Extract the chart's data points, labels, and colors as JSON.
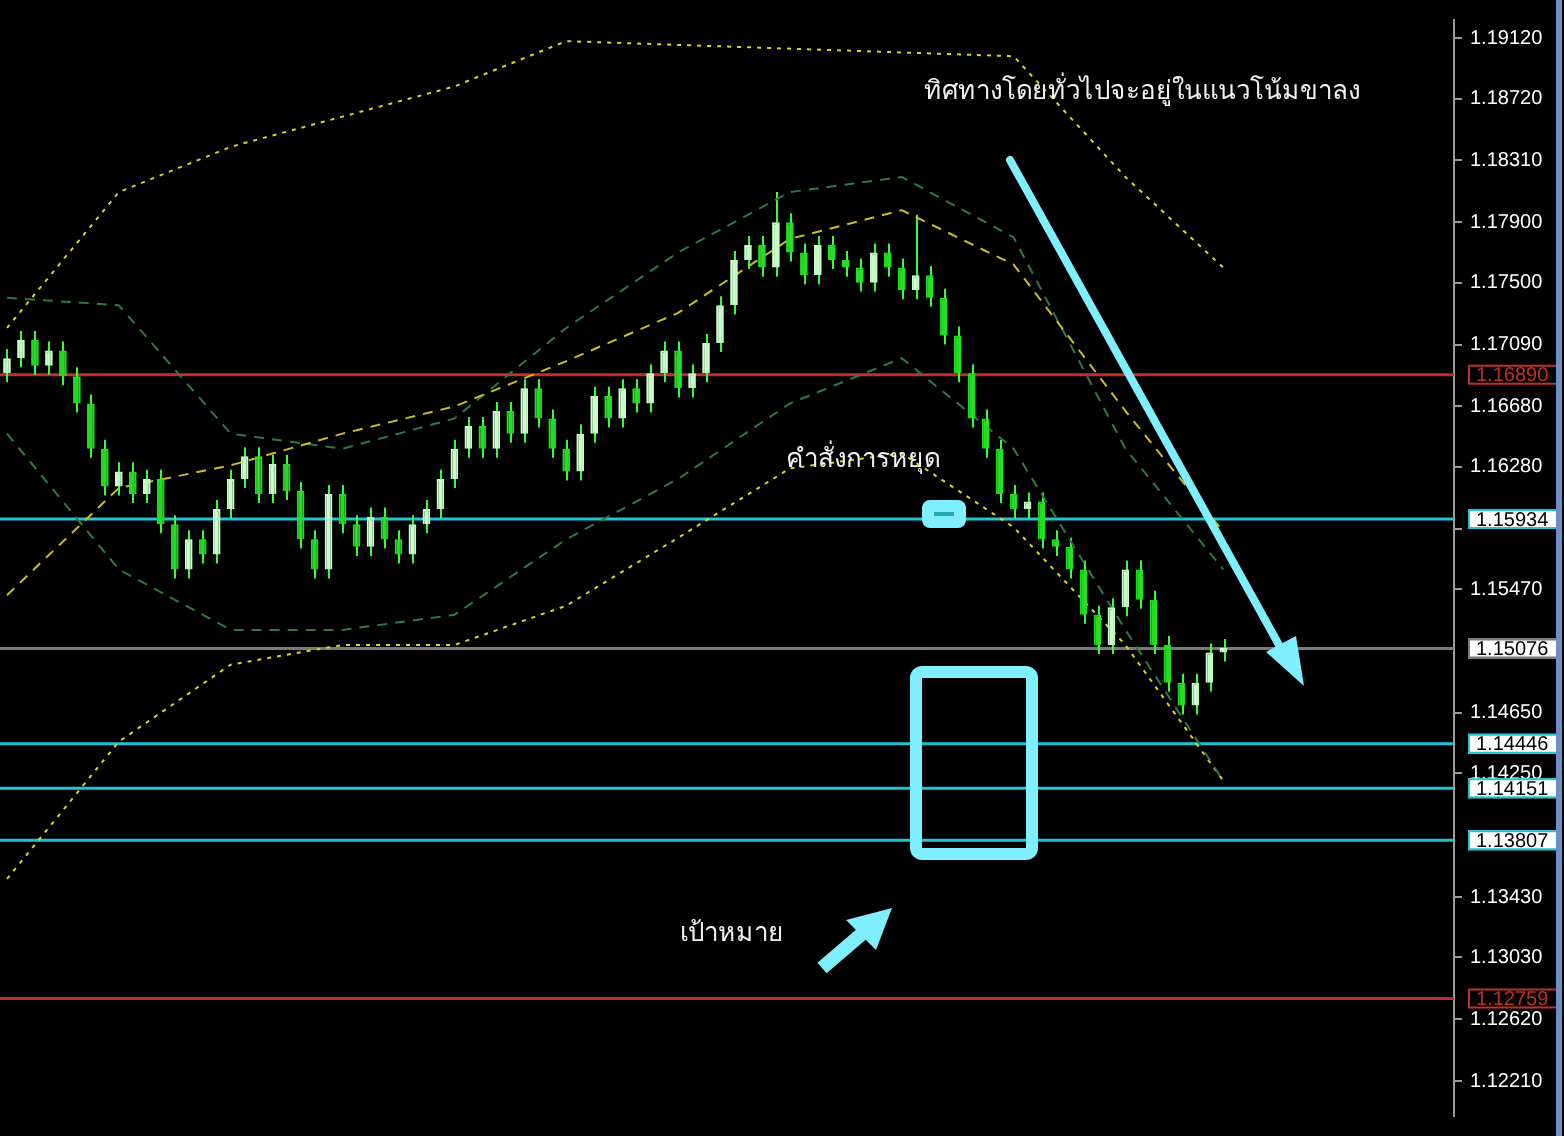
{
  "chart_data": {
    "type": "candlestick",
    "color": "#33ff33",
    "colors": [
      "#c8ffc8",
      "#c8ffc8",
      "#22dd22",
      "#c8ffc8",
      "#22dd22",
      "#22dd22",
      "#22dd22",
      "#22dd22",
      "#c8ffc8",
      "#22dd22",
      "#c8ffc8",
      "#22dd22",
      "#22dd22",
      "#c8ffc8",
      "#22dd22",
      "#c8ffc8",
      "#c8ffc8",
      "#c8ffc8",
      "#22dd22",
      "#c8ffc8",
      "#22dd22",
      "#22dd22",
      "#22dd22",
      "#c8ffc8",
      "#22dd22",
      "#22dd22",
      "#c8ffc8",
      "#22dd22",
      "#22dd22",
      "#c8ffc8",
      "#c8ffc8",
      "#c8ffc8",
      "#c8ffc8",
      "#c8ffc8",
      "#22dd22",
      "#c8ffc8",
      "#22dd22",
      "#c8ffc8",
      "#22dd22",
      "#22dd22",
      "#22dd22",
      "#c8ffc8",
      "#c8ffc8",
      "#22dd22",
      "#c8ffc8",
      "#22dd22",
      "#c8ffc8",
      "#c8ffc8",
      "#22dd22",
      "#c8ffc8",
      "#c8ffc8",
      "#c8ffc8",
      "#c8ffc8",
      "#c8ffc8",
      "#22dd22",
      "#c8ffc8",
      "#22dd22",
      "#22dd22",
      "#c8ffc8",
      "#22dd22",
      "#22dd22",
      "#22dd22",
      "#c8ffc8",
      "#22dd22",
      "#22dd22",
      "#c8ffc8",
      "#22dd22",
      "#22dd22",
      "#22dd22",
      "#22dd22",
      "#22dd22",
      "#22dd22",
      "#22dd22",
      "#c8ffc8",
      "#22dd22",
      "#22dd22",
      "#22dd22",
      "#22dd22",
      "#22dd22",
      "#c8ffc8",
      "#c8ffc8",
      "#22dd22",
      "#22dd22",
      "#22dd22",
      "#22dd22",
      "#c8ffc8",
      "#c8ffc8",
      "#c8ffc8",
      null,
      null,
      null,
      null,
      null,
      null,
      null,
      null,
      null,
      null,
      null,
      null,
      null,
      null,
      null,
      null
    ],
    "annotations": [
      "ทิศทางโดยทั่วไปจะอยู่ในแนวโน้มขาลง",
      "คำสั่งการหยุด",
      "เป้าหมาย"
    ],
    "categories": [
      null,
      null,
      null,
      null,
      null,
      null,
      null,
      null,
      null,
      null,
      null,
      null,
      null,
      null,
      null,
      null,
      null,
      null,
      null,
      null,
      null,
      null,
      null,
      null,
      null,
      null,
      null,
      null,
      null,
      null,
      null,
      null,
      null,
      null,
      null,
      null,
      null,
      null,
      null,
      null,
      null,
      null,
      null,
      null,
      null,
      null,
      null,
      null,
      null,
      null,
      null,
      null,
      null,
      null,
      null,
      null,
      null,
      null,
      null,
      null,
      null,
      null,
      null,
      null,
      null,
      null,
      null,
      null,
      null,
      null,
      null,
      null,
      null,
      null,
      null,
      null,
      null,
      null,
      null,
      null,
      null,
      null,
      null,
      null,
      null,
      null,
      null,
      null,
      null,
      null,
      null,
      null,
      null,
      null,
      null,
      null,
      null,
      null,
      null,
      null,
      null,
      null,
      null,
      null
    ],
    "ohlc": [
      [
        1.169,
        1.1706,
        1.1684,
        1.17
      ],
      [
        1.17,
        1.1718,
        1.1694,
        1.1712
      ],
      [
        1.1712,
        1.1718,
        1.1689,
        1.1695
      ],
      [
        1.1695,
        1.1711,
        1.1689,
        1.1705
      ],
      [
        1.1705,
        1.1711,
        1.1682,
        1.1688
      ],
      [
        1.1688,
        1.1694,
        1.1664,
        1.167
      ],
      [
        1.167,
        1.1676,
        1.1634,
        1.164
      ],
      [
        1.164,
        1.1646,
        1.1609,
        1.1615
      ],
      [
        1.1615,
        1.1631,
        1.1609,
        1.1625
      ],
      [
        1.1625,
        1.1631,
        1.1604,
        1.161
      ],
      [
        1.161,
        1.1626,
        1.1604,
        1.162
      ],
      [
        1.162,
        1.1626,
        1.1584,
        1.159
      ],
      [
        1.159,
        1.1596,
        1.1554,
        1.156
      ],
      [
        1.156,
        1.1586,
        1.1554,
        1.158
      ],
      [
        1.158,
        1.1586,
        1.1564,
        1.157
      ],
      [
        1.157,
        1.1606,
        1.1564,
        1.16
      ],
      [
        1.16,
        1.1626,
        1.1594,
        1.162
      ],
      [
        1.162,
        1.1641,
        1.1614,
        1.1635
      ],
      [
        1.1635,
        1.1641,
        1.1604,
        1.161
      ],
      [
        1.161,
        1.1636,
        1.1604,
        1.163
      ],
      [
        1.163,
        1.1636,
        1.1606,
        1.1612
      ],
      [
        1.1612,
        1.1618,
        1.1574,
        1.158
      ],
      [
        1.158,
        1.1586,
        1.1554,
        1.156
      ],
      [
        1.156,
        1.1616,
        1.1554,
        1.161
      ],
      [
        1.161,
        1.1616,
        1.1584,
        1.159
      ],
      [
        1.159,
        1.1596,
        1.1569,
        1.1575
      ],
      [
        1.1575,
        1.1601,
        1.1569,
        1.1595
      ],
      [
        1.1595,
        1.1601,
        1.1574,
        1.158
      ],
      [
        1.158,
        1.1586,
        1.1564,
        1.157
      ],
      [
        1.157,
        1.1596,
        1.1564,
        1.159
      ],
      [
        1.159,
        1.1606,
        1.1584,
        1.16
      ],
      [
        1.16,
        1.1626,
        1.1594,
        1.162
      ],
      [
        1.162,
        1.1646,
        1.1614,
        1.164
      ],
      [
        1.164,
        1.1661,
        1.1634,
        1.1655
      ],
      [
        1.1655,
        1.1661,
        1.1634,
        1.164
      ],
      [
        1.164,
        1.1671,
        1.1634,
        1.1665
      ],
      [
        1.1665,
        1.1671,
        1.1644,
        1.165
      ],
      [
        1.165,
        1.1686,
        1.1644,
        1.168
      ],
      [
        1.168,
        1.1686,
        1.1654,
        1.166
      ],
      [
        1.166,
        1.1666,
        1.1634,
        1.164
      ],
      [
        1.164,
        1.1646,
        1.1619,
        1.1625
      ],
      [
        1.1625,
        1.1656,
        1.1619,
        1.165
      ],
      [
        1.165,
        1.1681,
        1.1644,
        1.1675
      ],
      [
        1.1675,
        1.1681,
        1.1654,
        1.166
      ],
      [
        1.166,
        1.1686,
        1.1654,
        1.168
      ],
      [
        1.168,
        1.1686,
        1.1664,
        1.167
      ],
      [
        1.167,
        1.1696,
        1.1664,
        1.169
      ],
      [
        1.169,
        1.1711,
        1.1684,
        1.1705
      ],
      [
        1.1705,
        1.1711,
        1.1674,
        1.168
      ],
      [
        1.168,
        1.1696,
        1.1674,
        1.169
      ],
      [
        1.169,
        1.1716,
        1.1684,
        1.171
      ],
      [
        1.171,
        1.1741,
        1.1704,
        1.1735
      ],
      [
        1.1735,
        1.1771,
        1.1729,
        1.1765
      ],
      [
        1.1765,
        1.1781,
        1.1759,
        1.1775
      ],
      [
        1.1775,
        1.1781,
        1.1754,
        1.176
      ],
      [
        1.176,
        1.181,
        1.1754,
        1.179
      ],
      [
        1.179,
        1.1796,
        1.1764,
        1.177
      ],
      [
        1.177,
        1.1776,
        1.1749,
        1.1755
      ],
      [
        1.1755,
        1.1781,
        1.1749,
        1.1775
      ],
      [
        1.1775,
        1.1781,
        1.1759,
        1.1765
      ],
      [
        1.1765,
        1.1771,
        1.1754,
        1.176
      ],
      [
        1.176,
        1.1766,
        1.1744,
        1.175
      ],
      [
        1.175,
        1.1776,
        1.1744,
        1.177
      ],
      [
        1.177,
        1.1776,
        1.1754,
        1.176
      ],
      [
        1.176,
        1.1766,
        1.1739,
        1.1745
      ],
      [
        1.1745,
        1.1795,
        1.1739,
        1.1755
      ],
      [
        1.1755,
        1.1761,
        1.1734,
        1.174
      ],
      [
        1.174,
        1.1746,
        1.1709,
        1.1715
      ],
      [
        1.1715,
        1.1721,
        1.1684,
        1.169
      ],
      [
        1.169,
        1.1696,
        1.1654,
        1.166
      ],
      [
        1.166,
        1.1666,
        1.1634,
        1.164
      ],
      [
        1.164,
        1.1646,
        1.1604,
        1.161
      ],
      [
        1.161,
        1.1616,
        1.1594,
        1.16
      ],
      [
        1.16,
        1.1611,
        1.1594,
        1.1605
      ],
      [
        1.1605,
        1.1611,
        1.1574,
        1.158
      ],
      [
        1.158,
        1.1586,
        1.1569,
        1.1575
      ],
      [
        1.1575,
        1.1581,
        1.1554,
        1.156
      ],
      [
        1.156,
        1.1566,
        1.1524,
        1.153
      ],
      [
        1.153,
        1.1536,
        1.1504,
        1.151
      ],
      [
        1.151,
        1.1541,
        1.1504,
        1.1535
      ],
      [
        1.1535,
        1.1566,
        1.1529,
        1.156
      ],
      [
        1.156,
        1.1566,
        1.1534,
        1.154
      ],
      [
        1.154,
        1.1546,
        1.1504,
        1.151
      ],
      [
        1.151,
        1.1516,
        1.1479,
        1.1485
      ],
      [
        1.1485,
        1.1491,
        1.1464,
        1.147
      ],
      [
        1.147,
        1.1491,
        1.1464,
        1.1485
      ],
      [
        1.1485,
        1.1511,
        1.1479,
        1.1505
      ],
      [
        1.1505,
        1.1514,
        1.1499,
        1.1508
      ],
      null,
      null,
      null,
      null,
      null,
      null,
      null,
      null,
      null,
      null,
      null,
      null,
      null,
      null,
      null,
      null
    ],
    "series": [
      {
        "type": "line",
        "color": "#c8c020",
        "line_style": "dashed",
        "values": [
          1.1543,
          null,
          null,
          null,
          null,
          null,
          null,
          null,
          1.1614,
          null,
          null,
          null,
          null,
          null,
          null,
          null,
          1.1629,
          null,
          null,
          null,
          null,
          null,
          null,
          null,
          1.165,
          null,
          null,
          null,
          null,
          null,
          null,
          null,
          1.1668,
          null,
          null,
          null,
          null,
          null,
          null,
          null,
          1.1698,
          null,
          null,
          null,
          null,
          null,
          null,
          null,
          1.173,
          null,
          null,
          null,
          null,
          null,
          null,
          null,
          1.1779,
          null,
          null,
          null,
          null,
          null,
          null,
          null,
          1.1798,
          null,
          null,
          null,
          null,
          null,
          null,
          null,
          1.1762,
          null,
          null,
          null,
          null,
          null,
          null,
          null,
          1.1665,
          null,
          null,
          null,
          null,
          null,
          null,
          1.1585,
          null,
          null,
          null,
          null,
          null,
          null,
          null,
          null,
          null,
          null,
          null,
          null,
          null,
          null,
          null,
          null
        ]
      },
      {
        "type": "line",
        "color": "#2e7a44",
        "line_style": "dashed",
        "values": [
          1.174,
          null,
          null,
          null,
          null,
          null,
          null,
          null,
          1.1735,
          null,
          null,
          null,
          null,
          null,
          null,
          null,
          1.165,
          null,
          null,
          null,
          null,
          null,
          null,
          null,
          1.164,
          null,
          null,
          null,
          null,
          null,
          null,
          null,
          1.166,
          null,
          null,
          null,
          null,
          null,
          null,
          null,
          1.172,
          null,
          null,
          null,
          null,
          null,
          null,
          null,
          1.177,
          null,
          null,
          null,
          null,
          null,
          null,
          null,
          1.181,
          null,
          null,
          null,
          null,
          null,
          null,
          null,
          1.182,
          null,
          null,
          null,
          null,
          null,
          null,
          null,
          1.178,
          null,
          null,
          null,
          null,
          null,
          null,
          null,
          1.164,
          null,
          null,
          null,
          null,
          null,
          null,
          1.156,
          null,
          null,
          null,
          null,
          null,
          null,
          null,
          null,
          null,
          null,
          null,
          null,
          null,
          null,
          null,
          null
        ]
      },
      {
        "type": "line",
        "color": "#2e7a44",
        "line_style": "dashed",
        "values": [
          1.165,
          null,
          null,
          null,
          null,
          null,
          null,
          null,
          1.156,
          null,
          null,
          null,
          null,
          null,
          null,
          null,
          1.152,
          null,
          null,
          null,
          null,
          null,
          null,
          null,
          1.152,
          null,
          null,
          null,
          null,
          null,
          null,
          null,
          1.153,
          null,
          null,
          null,
          null,
          null,
          null,
          null,
          1.158,
          null,
          null,
          null,
          null,
          null,
          null,
          null,
          1.162,
          null,
          null,
          null,
          null,
          null,
          null,
          null,
          1.167,
          null,
          null,
          null,
          null,
          null,
          null,
          null,
          1.17,
          null,
          null,
          null,
          null,
          null,
          null,
          null,
          1.164,
          null,
          null,
          null,
          null,
          null,
          null,
          null,
          1.152,
          null,
          null,
          null,
          null,
          null,
          null,
          1.142,
          null,
          null,
          null,
          null,
          null,
          null,
          null,
          null,
          null,
          null,
          null,
          null,
          null,
          null,
          null,
          null
        ]
      },
      {
        "type": "line",
        "color": "#d8d820",
        "line_style": "dotted",
        "values": [
          1.172,
          null,
          null,
          null,
          null,
          null,
          null,
          null,
          1.181,
          null,
          null,
          null,
          null,
          null,
          null,
          null,
          1.184,
          null,
          null,
          null,
          null,
          null,
          null,
          null,
          1.186,
          null,
          null,
          null,
          null,
          null,
          null,
          null,
          1.188,
          null,
          null,
          null,
          null,
          null,
          null,
          null,
          1.191,
          null,
          null,
          null,
          null,
          null,
          null,
          null,
          null,
          null,
          null,
          null,
          null,
          null,
          null,
          null,
          null,
          null,
          null,
          null,
          null,
          null,
          null,
          null,
          null,
          null,
          null,
          null,
          null,
          null,
          null,
          null,
          1.19,
          null,
          null,
          null,
          null,
          null,
          null,
          null,
          1.182,
          null,
          null,
          null,
          null,
          null,
          null,
          1.176,
          null,
          null,
          null,
          null,
          null,
          null,
          null,
          null,
          null,
          null,
          null,
          null,
          null,
          null,
          null,
          null
        ]
      },
      {
        "type": "line",
        "color": "#d8d820",
        "line_style": "dotted",
        "values": [
          1.1355,
          null,
          null,
          null,
          null,
          null,
          null,
          null,
          1.1446,
          null,
          null,
          null,
          null,
          null,
          null,
          null,
          1.1497,
          null,
          null,
          null,
          null,
          null,
          null,
          null,
          1.151,
          null,
          null,
          null,
          null,
          null,
          null,
          null,
          1.151,
          null,
          null,
          null,
          null,
          null,
          null,
          null,
          1.1536,
          null,
          null,
          null,
          null,
          null,
          null,
          null,
          1.1581,
          null,
          null,
          null,
          null,
          null,
          null,
          null,
          1.1627,
          null,
          null,
          null,
          null,
          null,
          null,
          null,
          1.1637,
          null,
          null,
          null,
          null,
          null,
          null,
          null,
          1.1588,
          null,
          null,
          null,
          null,
          null,
          null,
          null,
          1.151,
          null,
          null,
          null,
          null,
          null,
          null,
          1.142,
          null,
          null,
          null,
          null,
          null,
          null,
          null,
          null,
          null,
          null,
          null,
          null,
          null,
          null,
          null,
          null
        ]
      }
    ],
    "ref_lines": [
      {
        "axis": "y",
        "value": 1.1689,
        "label": "1.16890",
        "color": "#c0302a"
      },
      {
        "axis": "y",
        "value": 1.15934,
        "label": "1.15934",
        "color": "#22c4d4"
      },
      {
        "axis": "y",
        "value": 1.15076,
        "label": "1.15076",
        "color": "#7a7a7a"
      },
      {
        "axis": "y",
        "value": 1.14446,
        "label": "1.14446",
        "color": "#22c4d4"
      },
      {
        "axis": "y",
        "value": 1.14151,
        "label": "1.14151",
        "color": "#22c4d4"
      },
      {
        "axis": "y",
        "value": 1.13807,
        "label": "1.13807",
        "color": "#22c4d4"
      },
      {
        "axis": "y",
        "value": 1.12759,
        "label": "1.12759",
        "color": "#c0302a"
      }
    ],
    "ylim": [
      1.1198,
      1.1924
    ],
    "yticks": [
      {
        "value": 1.1912,
        "label": "1.19120"
      },
      {
        "value": 1.1872,
        "label": "1.18720"
      },
      {
        "value": 1.1831,
        "label": "1.18310"
      },
      {
        "value": 1.179,
        "label": "1.17900"
      },
      {
        "value": 1.175,
        "label": "1.17500"
      },
      {
        "value": 1.1709,
        "label": "1.17090"
      },
      {
        "value": 1.1668,
        "label": "1.16680"
      },
      {
        "value": 1.1628,
        "label": "1.16280"
      },
      {
        "value": 1.1587,
        "label": null
      },
      {
        "value": 1.1547,
        "label": "1.15470"
      },
      {
        "value": 1.1465,
        "label": "1.14650"
      },
      {
        "value": 1.1425,
        "label": "1.14250"
      },
      {
        "value": 1.1343,
        "label": "1.13430"
      },
      {
        "value": 1.1303,
        "label": "1.13030"
      },
      {
        "value": 1.1262,
        "label": "1.12620"
      },
      {
        "value": 1.1221,
        "label": "1.12210"
      }
    ],
    "tick_labels": "y",
    "grid": false,
    "legend": false
  }
}
